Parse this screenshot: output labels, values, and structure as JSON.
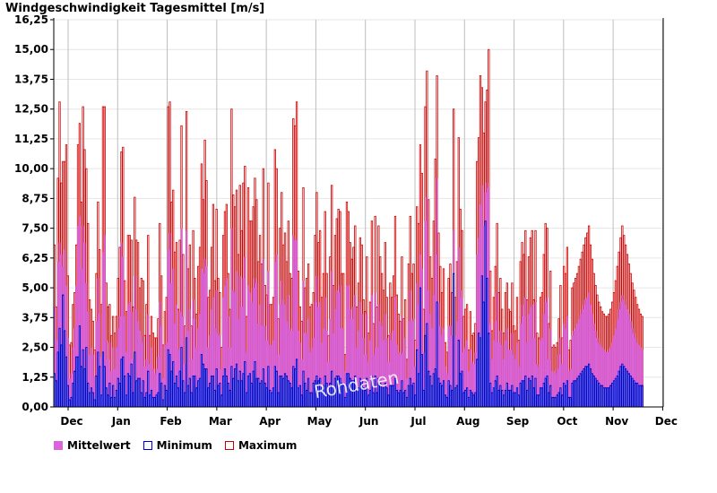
{
  "title": "Windgeschwindigkeit Tagesmittel [m/s]",
  "watermark": "Rohdaten",
  "chart_data": {
    "type": "bar",
    "ylim": [
      0,
      16.25
    ],
    "yticks": [
      "0,00",
      "1,25",
      "2,50",
      "3,75",
      "5,00",
      "6,25",
      "7,50",
      "8,75",
      "10,00",
      "11,25",
      "12,50",
      "13,75",
      "15,00",
      "16,25"
    ],
    "months": [
      "Dec",
      "Jan",
      "Feb",
      "Mar",
      "Apr",
      "May",
      "Jun",
      "Jul",
      "Aug",
      "Sep",
      "Oct",
      "Nov",
      "Dec"
    ],
    "grid": true,
    "legend_position": "bottom",
    "series": [
      {
        "name": "Mittelwert",
        "color": "#d966d9"
      },
      {
        "name": "Minimum",
        "color": "#0000cc"
      },
      {
        "name": "Maximum",
        "color": "#cc0000"
      }
    ],
    "days": 365,
    "maximum": [
      6.8,
      4.2,
      9.6,
      12.8,
      9.4,
      10.3,
      10.3,
      11.0,
      5.5,
      2.6,
      2.7,
      4.3,
      4.8,
      6.8,
      11.0,
      11.9,
      8.6,
      12.6,
      10.8,
      10.0,
      7.7,
      4.5,
      4.1,
      3.6,
      2.4,
      5.6,
      8.6,
      6.6,
      4.3,
      12.6,
      12.6,
      5.2,
      4.2,
      4.3,
      3.0,
      3.8,
      3.1,
      3.8,
      5.4,
      6.7,
      10.7,
      10.9,
      5.3,
      4.0,
      7.2,
      7.2,
      7.0,
      4.2,
      8.8,
      7.0,
      6.9,
      5.0,
      5.4,
      5.3,
      3.0,
      4.3,
      7.2,
      3.0,
      3.8,
      3.1,
      2.9,
      2.9,
      3.7,
      7.7,
      5.5,
      2.6,
      4.0,
      4.6,
      12.6,
      12.8,
      8.6,
      9.1,
      6.5,
      6.9,
      4.1,
      7.0,
      11.8,
      6.4,
      3.4,
      12.4,
      5.8,
      6.8,
      3.4,
      7.4,
      5.4,
      3.9,
      5.9,
      6.7,
      10.2,
      8.7,
      11.2,
      9.5,
      4.6,
      4.9,
      6.7,
      8.5,
      5.3,
      8.3,
      5.4,
      4.8,
      2.5,
      7.2,
      8.2,
      8.5,
      5.6,
      4.1,
      12.5,
      8.9,
      8.4,
      9.1,
      6.4,
      9.3,
      7.4,
      9.4,
      10.1,
      3.8,
      9.2,
      7.8,
      7.8,
      8.4,
      9.6,
      8.7,
      6.1,
      7.2,
      6.0,
      10.0,
      5.1,
      4.7,
      9.4,
      4.3,
      4.3,
      4.6,
      10.8,
      10.0,
      3.7,
      7.5,
      9.0,
      6.8,
      7.3,
      6.1,
      7.8,
      5.6,
      5.4,
      12.1,
      11.8,
      12.8,
      5.7,
      4.2,
      3.6,
      9.2,
      5.0,
      5.4,
      6.0,
      4.2,
      4.3,
      4.8,
      7.2,
      9.0,
      6.9,
      7.4,
      4.6,
      5.6,
      8.2,
      5.6,
      3.0,
      6.3,
      9.3,
      5.1,
      7.2,
      7.9,
      8.3,
      8.2,
      5.6,
      5.6,
      2.2,
      8.6,
      8.2,
      6.9,
      6.2,
      6.7,
      7.6,
      4.2,
      5.2,
      7.1,
      6.8,
      4.5,
      4.0,
      6.3,
      3.1,
      4.4,
      7.8,
      3.5,
      8.0,
      4.2,
      7.6,
      6.3,
      5.6,
      4.9,
      6.9,
      4.6,
      3.0,
      5.2,
      4.6,
      5.5,
      8.0,
      4.7,
      3.9,
      3.6,
      6.3,
      3.7,
      4.5,
      2.0,
      6.0,
      8.0,
      5.6,
      6.0,
      2.8,
      8.4,
      7.7,
      11.0,
      9.8,
      4.1,
      12.6,
      14.1,
      8.7,
      6.3,
      5.4,
      7.8,
      10.4,
      13.9,
      7.3,
      5.9,
      4.8,
      5.8,
      2.7,
      2.3,
      5.4,
      6.0,
      4.8,
      12.5,
      4.6,
      6.1,
      11.3,
      8.3,
      7.4,
      3.8,
      4.1,
      4.3,
      2.4,
      4.0,
      3.0,
      3.1,
      3.5,
      10.3,
      11.3,
      13.9,
      13.4,
      11.5,
      12.8,
      13.3,
      15.0,
      5.7,
      3.2,
      4.6,
      5.9,
      7.7,
      4.8,
      5.4,
      4.1,
      3.1,
      4.8,
      5.2,
      4.1,
      4.0,
      5.2,
      3.4,
      3.2,
      4.6,
      2.8,
      6.1,
      6.9,
      6.4,
      7.4,
      4.5,
      6.3,
      7.1,
      7.4,
      4.5,
      7.4,
      3.1,
      2.9,
      4.6,
      4.8,
      6.4,
      7.7,
      7.5,
      3.5,
      5.7,
      2.5,
      2.6,
      2.5,
      2.7,
      3.7,
      5.1,
      2.9,
      5.9,
      5.6,
      6.7,
      2.4,
      2.8,
      5.0,
      5.2,
      5.4,
      5.6,
      5.9,
      6.2,
      6.5,
      6.8,
      7.1,
      7.3,
      7.6,
      6.8,
      6.2,
      5.6,
      5.1,
      4.7,
      4.4,
      4.2,
      4.0,
      3.9,
      3.8,
      3.8,
      3.9,
      4.1,
      4.4,
      4.8,
      5.3,
      5.9,
      6.5,
      7.1,
      7.6,
      7.2,
      6.8,
      6.4,
      6.0,
      5.6,
      5.2,
      4.9,
      4.6,
      4.3,
      4.1,
      3.9,
      3.8
    ],
    "mean": [
      4.2,
      2.8,
      6.1,
      6.9,
      6.4,
      5.9,
      6.6,
      5.1,
      2.9,
      1.2,
      1.4,
      2.5,
      3.3,
      5.1,
      7.6,
      8.0,
      5.8,
      7.6,
      6.9,
      5.2,
      4.0,
      2.2,
      2.5,
      2.2,
      1.3,
      3.6,
      5.4,
      3.9,
      2.1,
      6.5,
      7.2,
      2.8,
      2.0,
      2.7,
      1.5,
      2.5,
      1.6,
      2.5,
      3.3,
      3.8,
      6.9,
      6.3,
      3.8,
      2.3,
      4.3,
      4.4,
      4.0,
      2.0,
      5.5,
      4.1,
      3.6,
      3.2,
      2.7,
      3.0,
      1.7,
      2.0,
      3.9,
      1.8,
      2.5,
      1.6,
      1.4,
      1.6,
      2.1,
      4.4,
      3.4,
      1.2,
      2.6,
      2.7,
      6.6,
      7.3,
      5.2,
      5.8,
      3.5,
      4.3,
      2.4,
      4.0,
      7.5,
      3.8,
      1.8,
      7.4,
      3.2,
      4.1,
      2.0,
      4.5,
      3.7,
      2.5,
      3.3,
      3.9,
      5.8,
      5.6,
      6.2,
      5.9,
      2.5,
      3.0,
      4.1,
      4.6,
      3.3,
      4.9,
      3.1,
      3.0,
      1.6,
      4.6,
      5.1,
      5.4,
      3.8,
      2.5,
      7.5,
      4.9,
      4.8,
      5.7,
      3.7,
      5.5,
      4.2,
      5.4,
      6.3,
      2.3,
      5.1,
      4.8,
      4.4,
      5.0,
      5.4,
      5.2,
      3.5,
      4.3,
      3.4,
      6.2,
      3.4,
      2.8,
      5.7,
      2.6,
      2.6,
      2.8,
      6.1,
      6.4,
      2.2,
      4.3,
      5.3,
      4.5,
      4.3,
      3.6,
      4.7,
      3.3,
      3.2,
      7.2,
      7.0,
      7.0,
      3.2,
      2.7,
      2.0,
      5.3,
      3.1,
      3.1,
      3.7,
      2.3,
      2.5,
      2.9,
      4.4,
      5.5,
      4.2,
      4.4,
      2.7,
      3.3,
      4.6,
      3.2,
      1.9,
      3.7,
      5.7,
      3.1,
      4.1,
      4.9,
      4.8,
      5.1,
      3.3,
      3.3,
      1.5,
      5.1,
      5.1,
      4.1,
      3.7,
      4.2,
      4.7,
      2.5,
      3.2,
      4.4,
      3.9,
      2.9,
      2.2,
      3.9,
      1.9,
      2.8,
      4.7,
      2.2,
      4.8,
      2.5,
      4.3,
      3.6,
      3.4,
      2.8,
      3.9,
      2.9,
      1.9,
      3.1,
      2.8,
      3.2,
      4.6,
      2.6,
      2.3,
      2.2,
      3.8,
      2.3,
      2.9,
      1.2,
      3.6,
      4.9,
      3.6,
      3.7,
      1.7,
      5.2,
      4.3,
      6.4,
      5.8,
      2.3,
      7.8,
      8.8,
      4.9,
      3.9,
      3.3,
      4.7,
      6.4,
      9.6,
      4.4,
      3.4,
      3.0,
      3.3,
      1.7,
      1.4,
      3.4,
      3.4,
      3.0,
      7.4,
      3.0,
      3.6,
      6.7,
      4.9,
      4.6,
      2.3,
      2.5,
      2.8,
      1.5,
      2.4,
      1.9,
      1.8,
      2.3,
      6.4,
      7.1,
      8.5,
      9.3,
      7.6,
      9.0,
      9.4,
      9.2,
      3.5,
      2.0,
      2.8,
      3.6,
      4.8,
      2.7,
      3.2,
      2.6,
      2.0,
      2.8,
      3.3,
      2.4,
      2.4,
      3.1,
      2.2,
      2.0,
      2.7,
      1.7,
      3.5,
      4.3,
      3.8,
      4.6,
      2.7,
      3.9,
      4.2,
      4.3,
      2.9,
      4.4,
      1.8,
      1.7,
      2.8,
      2.9,
      3.9,
      4.4,
      4.6,
      2.0,
      3.3,
      1.5,
      1.5,
      1.4,
      1.6,
      2.2,
      2.9,
      1.8,
      3.5,
      3.3,
      3.8,
      1.5,
      1.6,
      3.0,
      3.2,
      3.3,
      3.5,
      3.7,
      3.9,
      4.1,
      4.3,
      4.5,
      4.6,
      4.8,
      4.3,
      3.9,
      3.5,
      3.2,
      2.9,
      2.7,
      2.6,
      2.5,
      2.4,
      2.3,
      2.3,
      2.4,
      2.5,
      2.7,
      3.0,
      3.3,
      3.7,
      4.1,
      4.4,
      4.7,
      4.5,
      4.3,
      4.1,
      3.9,
      3.6,
      3.3,
      3.1,
      2.9,
      2.7,
      2.6,
      2.5,
      2.4
    ],
    "minimum": [
      1.4,
      1.1,
      2.3,
      3.3,
      2.6,
      4.7,
      3.2,
      2.1,
      0.9,
      0.3,
      0.4,
      1.0,
      1.5,
      2.1,
      2.1,
      3.4,
      1.7,
      2.4,
      1.6,
      2.5,
      1.0,
      0.6,
      0.8,
      0.6,
      0.3,
      1.3,
      2.3,
      1.7,
      0.5,
      2.3,
      1.7,
      0.8,
      0.5,
      1.0,
      0.4,
      0.9,
      0.4,
      0.7,
      1.2,
      1.0,
      2.0,
      2.1,
      1.3,
      0.5,
      1.4,
      1.3,
      1.8,
      0.6,
      2.3,
      1.1,
      1.2,
      1.2,
      0.6,
      1.1,
      0.4,
      0.6,
      1.5,
      0.5,
      0.7,
      0.4,
      0.4,
      0.5,
      0.6,
      1.4,
      1.0,
      0.3,
      0.9,
      0.7,
      2.4,
      2.2,
      1.5,
      1.9,
      1.0,
      1.3,
      0.8,
      1.5,
      2.5,
      1.1,
      0.6,
      2.9,
      0.9,
      1.2,
      0.6,
      1.3,
      1.3,
      0.8,
      1.1,
      1.2,
      2.2,
      1.8,
      1.6,
      1.6,
      0.8,
      1.0,
      1.3,
      1.3,
      0.7,
      1.6,
      0.9,
      1.0,
      0.5,
      1.3,
      1.6,
      1.3,
      1.0,
      0.7,
      1.7,
      1.2,
      1.6,
      1.8,
      1.1,
      1.5,
      1.1,
      1.4,
      1.9,
      0.6,
      1.3,
      1.4,
      1.0,
      1.5,
      1.9,
      1.2,
      1.2,
      1.0,
      1.1,
      1.6,
      1.0,
      0.8,
      1.7,
      0.7,
      0.6,
      0.8,
      1.7,
      1.5,
      0.6,
      1.3,
      1.3,
      1.2,
      1.4,
      1.3,
      1.1,
      1.0,
      0.8,
      1.7,
      1.6,
      2.0,
      0.8,
      0.9,
      0.5,
      1.5,
      1.0,
      0.7,
      1.2,
      0.6,
      0.6,
      1.0,
      1.1,
      1.3,
      1.1,
      1.2,
      0.8,
      0.9,
      1.3,
      1.0,
      0.5,
      1.0,
      1.5,
      0.8,
      1.2,
      1.3,
      1.3,
      1.2,
      1.0,
      0.9,
      0.4,
      1.4,
      1.4,
      1.2,
      1.1,
      1.1,
      1.3,
      0.7,
      0.8,
      1.2,
      1.1,
      0.8,
      0.7,
      1.2,
      0.5,
      0.7,
      1.3,
      0.6,
      1.3,
      0.6,
      1.2,
      1.0,
      0.9,
      0.8,
      1.0,
      0.8,
      0.5,
      0.9,
      0.9,
      0.9,
      1.2,
      0.7,
      0.6,
      0.7,
      1.1,
      0.6,
      0.7,
      0.4,
      0.9,
      1.2,
      0.9,
      1.0,
      0.5,
      2.4,
      1.4,
      5.0,
      2.2,
      0.7,
      3.0,
      3.5,
      1.5,
      1.3,
      0.9,
      1.4,
      1.6,
      4.4,
      1.2,
      1.0,
      0.9,
      1.1,
      0.5,
      0.4,
      1.1,
      0.9,
      0.7,
      5.6,
      0.8,
      0.9,
      2.8,
      1.4,
      1.5,
      0.6,
      0.7,
      0.8,
      0.4,
      0.7,
      0.6,
      0.5,
      0.6,
      2.0,
      3.1,
      2.9,
      5.5,
      4.4,
      7.8,
      5.4,
      3.1,
      1.0,
      0.6,
      0.8,
      1.1,
      1.3,
      0.7,
      0.9,
      0.7,
      0.5,
      0.7,
      1.0,
      0.7,
      0.7,
      0.9,
      0.6,
      0.6,
      0.8,
      0.5,
      1.0,
      1.1,
      1.1,
      1.3,
      0.7,
      1.2,
      1.1,
      1.3,
      0.8,
      1.2,
      0.5,
      0.5,
      0.8,
      0.8,
      1.0,
      1.2,
      1.3,
      0.6,
      0.9,
      0.4,
      0.4,
      0.4,
      0.5,
      0.6,
      0.8,
      0.5,
      1.0,
      0.9,
      1.1,
      0.4,
      0.4,
      1.0,
      1.1,
      1.1,
      1.2,
      1.3,
      1.4,
      1.5,
      1.6,
      1.7,
      1.7,
      1.8,
      1.6,
      1.4,
      1.3,
      1.2,
      1.1,
      1.0,
      0.9,
      0.9,
      0.8,
      0.8,
      0.8,
      0.8,
      0.9,
      1.0,
      1.1,
      1.2,
      1.3,
      1.5,
      1.7,
      1.8,
      1.7,
      1.6,
      1.5,
      1.4,
      1.3,
      1.2,
      1.1,
      1.0,
      1.0,
      0.9,
      0.9,
      0.9
    ]
  }
}
